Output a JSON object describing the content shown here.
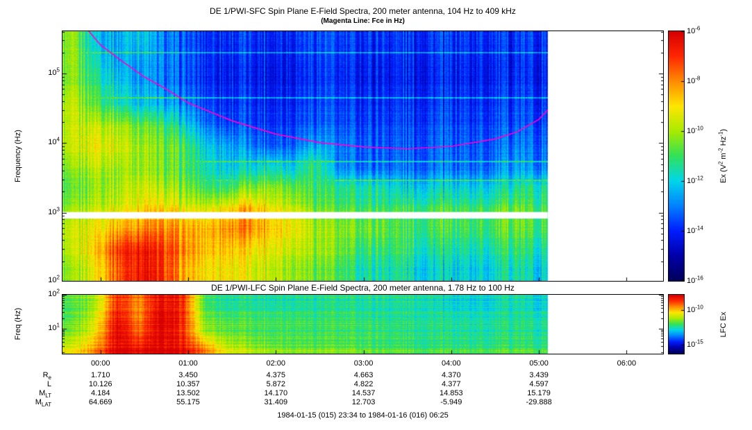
{
  "figure": {
    "background": "#ffffff",
    "footer": "1984-01-15 (015) 23:34 to 1984-01-16 (016) 06:25"
  },
  "chart_data": [
    {
      "id": "sfc",
      "type": "heatmap",
      "title": "DE 1/PWI-SFC  Spin Plane E-Field Spectra, 200 meter antenna, 104 Hz to 409 kHz",
      "subtitle": "(Magenta Line: Fce in Hz)",
      "ylabel": "Frequency (Hz)",
      "yscale": "log",
      "ylim_hz": [
        104,
        409000
      ],
      "yticks": [
        {
          "label": "10^5",
          "value": 100000
        },
        {
          "label": "10^4",
          "value": 10000
        },
        {
          "label": "10^3",
          "value": 1000
        },
        {
          "label": "10^2",
          "value": 100
        }
      ],
      "time_axis": {
        "start_hours": -0.4333,
        "end_hours": 6.4167,
        "data_end_hours": 5.1,
        "ticks": [
          "00:00",
          "01:00",
          "02:00",
          "03:00",
          "04:00",
          "05:00",
          "06:00"
        ]
      },
      "colorbar": {
        "label": "Ex (V^2 m^-2 Hz^-1)",
        "ticks": [
          "10^-6",
          "10^-8",
          "10^-10",
          "10^-12",
          "10^-14",
          "10^-16"
        ]
      },
      "grid_value_scale": "0..10 maps to 1e-16..1e-6 V^2 m^-2 Hz^-1",
      "white_band_hz": [
        820,
        1020
      ],
      "interference_lines_hz": [
        200000,
        45000,
        5400,
        2900
      ],
      "fce_line": {
        "color": "#ff00cc",
        "points": [
          [
            -0.14,
            420000
          ],
          [
            0,
            260000
          ],
          [
            0.25,
            150000
          ],
          [
            0.5,
            90000
          ],
          [
            0.75,
            60000
          ],
          [
            1.0,
            38000
          ],
          [
            1.5,
            21000
          ],
          [
            2.0,
            13500
          ],
          [
            2.5,
            10200
          ],
          [
            3.0,
            8800
          ],
          [
            3.5,
            8300
          ],
          [
            4.0,
            9000
          ],
          [
            4.5,
            11500
          ],
          [
            4.75,
            14500
          ],
          [
            5.0,
            22000
          ],
          [
            5.1,
            30000
          ]
        ]
      },
      "grid": {
        "t0_hours": -0.4333,
        "dt_hours": 0.25,
        "values": [
          [
            5.5,
            4,
            3.5,
            4,
            3,
            2.5,
            2.2,
            2.2,
            2.2,
            2.2,
            2.2,
            2.5,
            2.2,
            2.2,
            2.2,
            2.2,
            2.2,
            2.2,
            2.2,
            2.2,
            2.2,
            2.2
          ],
          [
            5.5,
            4.5,
            3.5,
            3.5,
            3,
            2.5,
            2.2,
            2,
            2,
            2,
            2,
            2.3,
            2,
            2,
            2,
            2,
            2,
            2,
            2,
            2,
            2,
            2
          ],
          [
            5.5,
            5,
            4,
            3.5,
            3,
            2.5,
            2.2,
            2,
            2,
            2,
            2,
            2.3,
            2,
            2,
            2,
            2,
            2,
            2,
            2,
            2,
            2.2,
            2
          ],
          [
            6,
            5.5,
            4.5,
            4,
            3.5,
            3,
            2.5,
            2.2,
            2.2,
            2.2,
            2.2,
            2.5,
            2.2,
            2.2,
            2.2,
            2.2,
            2.2,
            2.2,
            2.2,
            2.2,
            2.4,
            2.2
          ],
          [
            6,
            6.5,
            6,
            5.5,
            5,
            4,
            3,
            2.5,
            2.4,
            2.4,
            2.4,
            2.7,
            2.4,
            2.4,
            2.4,
            2.4,
            2.4,
            2.4,
            2.4,
            2.4,
            2.6,
            2.4
          ],
          [
            6,
            7,
            6.5,
            6,
            5.5,
            5,
            4,
            3.5,
            3,
            2.8,
            2.8,
            3.5,
            2.8,
            2.7,
            2.6,
            2.6,
            2.6,
            2.6,
            2.6,
            2.6,
            3,
            2.7
          ],
          [
            5.5,
            6.5,
            6,
            6,
            5.5,
            5,
            4.5,
            4,
            4,
            4.5,
            4,
            5,
            3,
            2.8,
            2.8,
            2.8,
            2.8,
            2.8,
            2.8,
            2.8,
            3.4,
            3
          ],
          [
            5,
            6,
            6,
            6.5,
            6,
            5.5,
            5,
            5,
            5.5,
            6,
            5.5,
            5,
            4.5,
            4.5,
            4.5,
            4,
            4,
            4,
            4,
            4,
            4.5,
            4.5
          ],
          [
            5.5,
            6.5,
            6.5,
            7,
            7,
            6.5,
            6.5,
            7,
            7.5,
            7,
            6.5,
            5.5,
            5,
            5,
            5,
            5,
            5,
            5,
            5,
            5,
            5.5,
            5
          ],
          [
            6,
            7,
            7.5,
            8,
            8,
            7.5,
            7.5,
            8,
            8,
            7.5,
            7,
            6,
            5.5,
            5.5,
            5.5,
            5,
            5,
            5,
            5,
            5,
            5.5,
            5
          ],
          [
            6,
            7.5,
            9,
            9.5,
            9,
            8,
            7.5,
            7.5,
            7,
            7,
            6.5,
            6,
            5.5,
            5,
            5,
            5,
            4.5,
            4.5,
            4.5,
            4.5,
            5,
            4.5
          ],
          [
            5.5,
            7,
            8.5,
            9.5,
            9,
            7.5,
            7,
            7,
            6.5,
            6.5,
            6,
            5.5,
            5,
            4.5,
            4.5,
            4.5,
            4,
            4,
            4,
            4,
            4.5,
            4
          ]
        ]
      }
    },
    {
      "id": "lfc",
      "type": "heatmap",
      "title": "DE 1/PWI-LFC  Spin Plane E-Field Spectra, 200 meter antenna, 1.78 Hz to 100 Hz",
      "ylabel": "Freq (Hz)",
      "yscale": "log",
      "ylim_hz": [
        1.78,
        100
      ],
      "yticks": [
        {
          "label": "10^2",
          "value": 100
        },
        {
          "label": "10^1",
          "value": 10
        }
      ],
      "colorbar": {
        "label": "LFC Ex",
        "ticks": [
          "10^-10",
          "10^-15"
        ]
      },
      "grid": {
        "t0_hours": -0.4333,
        "dt_hours": 0.25,
        "values": [
          [
            5,
            6,
            9,
            8,
            9.5,
            9,
            5,
            4.5,
            4.5,
            4.5,
            4.5,
            4.5,
            4.5,
            4.5,
            4.5,
            4.5,
            4.5,
            4,
            4,
            4,
            4.5,
            4
          ],
          [
            5,
            6.5,
            9.5,
            8,
            10,
            9,
            5.5,
            5,
            5,
            5,
            5,
            4.8,
            4.8,
            4.8,
            4.6,
            4.6,
            4.6,
            4.4,
            4.4,
            4.4,
            4.6,
            4.4
          ],
          [
            5.5,
            7,
            10,
            8.5,
            10,
            9,
            6,
            5.5,
            5.2,
            5.2,
            5.2,
            5,
            5,
            5,
            5,
            4.8,
            4.8,
            4.6,
            4.6,
            4.6,
            4.8,
            4.6
          ],
          [
            6.5,
            8,
            10,
            9.5,
            10,
            9.5,
            8,
            6.5,
            6,
            5.8,
            5.6,
            5.5,
            5.4,
            5.4,
            5.2,
            5.2,
            5,
            5,
            5,
            5,
            5.2,
            5
          ]
        ]
      }
    }
  ],
  "ephemeris": {
    "row_labels": [
      "R_e",
      "L",
      "M_LT",
      "M_LAT"
    ],
    "columns": [
      "00:00",
      "01:00",
      "02:00",
      "03:00",
      "04:00",
      "05:00"
    ],
    "rows": [
      [
        "1.710",
        "3.450",
        "4.375",
        "4.663",
        "4.370",
        "3.439"
      ],
      [
        "10.126",
        "10.357",
        "5.872",
        "4.822",
        "4.377",
        "4.597"
      ],
      [
        "4.184",
        "13.502",
        "14.170",
        "14.537",
        "14.853",
        "15.179"
      ],
      [
        "64.669",
        "55.175",
        "31.409",
        "12.703",
        "-5.949",
        "-29.888"
      ]
    ]
  }
}
